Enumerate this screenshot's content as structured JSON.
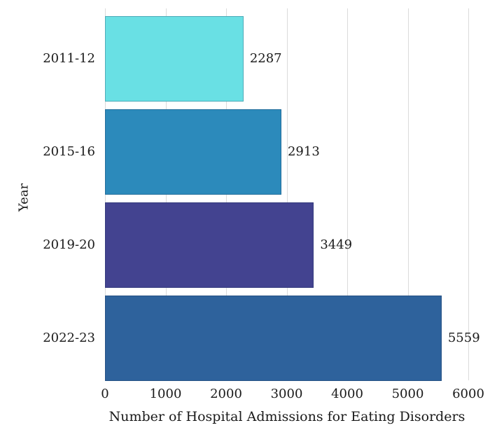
{
  "chart_data": {
    "type": "bar",
    "orientation": "horizontal",
    "title": "",
    "xlabel": "Number of Hospital Admissions for Eating Disorders",
    "ylabel": "Year",
    "categories": [
      "2011-12",
      "2015-16",
      "2019-20",
      "2022-23"
    ],
    "values": [
      2287,
      2913,
      3449,
      5559
    ],
    "value_labels": [
      "2287",
      "2913",
      "3449",
      "5559"
    ],
    "bar_colors": [
      "#69E0E4",
      "#2C8ABB",
      "#434390",
      "#2E629C"
    ],
    "x_ticks": [
      0,
      1000,
      2000,
      3000,
      4000,
      5000,
      6000
    ],
    "x_tick_labels": [
      "0",
      "1000",
      "2000",
      "3000",
      "4000",
      "5000",
      "6000"
    ],
    "xlim": [
      0,
      6000
    ],
    "grid": "vertical",
    "legend": "none",
    "gridline_color": "#DBDBDB",
    "text_color": "#1A1A1A",
    "background_color": "#FFFFFF"
  }
}
